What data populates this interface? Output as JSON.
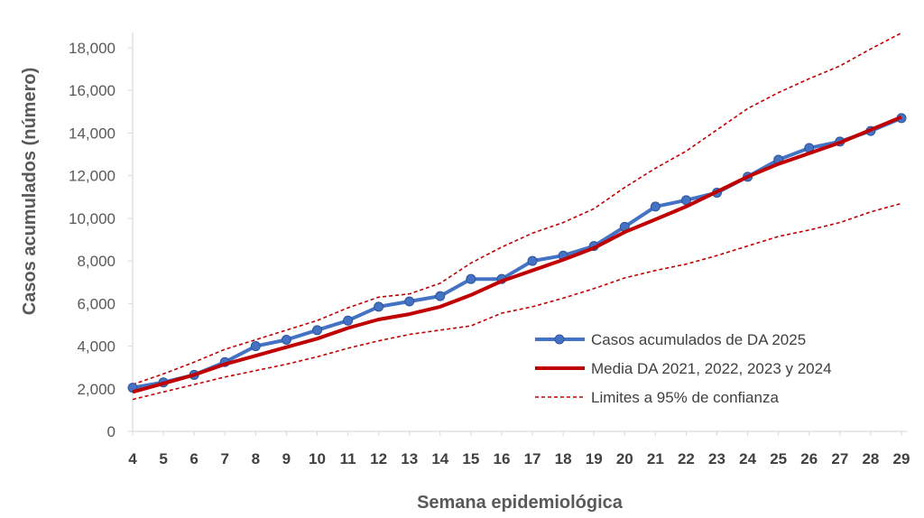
{
  "chart_data": {
    "type": "line",
    "xlabel": "Semana epidemiológica",
    "ylabel": "Casos acumulados  (número)",
    "x": [
      4,
      5,
      6,
      7,
      8,
      9,
      10,
      11,
      12,
      13,
      14,
      15,
      16,
      17,
      18,
      19,
      20,
      21,
      22,
      23,
      24,
      25,
      26,
      27,
      28,
      29
    ],
    "ylim": [
      0,
      18000
    ],
    "yticks": [
      0,
      2000,
      4000,
      6000,
      8000,
      10000,
      12000,
      14000,
      16000,
      18000
    ],
    "ytick_labels": [
      "0",
      "2,000",
      "4,000",
      "6,000",
      "8,000",
      "10,000",
      "12,000",
      "14,000",
      "16,000",
      "18,000"
    ],
    "grid": false,
    "legend_position": "bottom-right",
    "series": [
      {
        "name": "Casos acumulados de DA 2025",
        "style": "line-markers",
        "color": "#4472C4",
        "values": [
          2050,
          2300,
          2650,
          3250,
          4000,
          4300,
          4750,
          5200,
          5850,
          6100,
          6350,
          7150,
          7150,
          8000,
          8250,
          8700,
          9600,
          10550,
          10850,
          11200,
          11950,
          12750,
          13300,
          13600,
          14100,
          14700
        ]
      },
      {
        "name": "Media DA 2021, 2022, 2023 y 2024",
        "style": "line-thick",
        "color": "#C00000",
        "values": [
          1850,
          2250,
          2650,
          3150,
          3550,
          3950,
          4350,
          4850,
          5250,
          5500,
          5850,
          6400,
          7050,
          7550,
          8050,
          8600,
          9350,
          9950,
          10550,
          11250,
          11950,
          12550,
          13050,
          13550,
          14150,
          14750
        ]
      },
      {
        "name": "Limites a 95% de confianza",
        "style": "dashed",
        "color": "#C00000",
        "values": [
          2200,
          2700,
          3250,
          3850,
          4300,
          4750,
          5200,
          5800,
          6300,
          6450,
          6950,
          7900,
          8650,
          9300,
          9800,
          10450,
          11450,
          12350,
          13150,
          14150,
          15150,
          15900,
          16550,
          17150,
          17950,
          18700
        ]
      },
      {
        "name": "",
        "style": "dashed",
        "color": "#C00000",
        "values": [
          1500,
          1850,
          2200,
          2550,
          2850,
          3150,
          3500,
          3900,
          4250,
          4550,
          4750,
          4950,
          5550,
          5850,
          6250,
          6700,
          7200,
          7550,
          7850,
          8250,
          8700,
          9150,
          9450,
          9800,
          10300,
          10700
        ]
      }
    ]
  }
}
